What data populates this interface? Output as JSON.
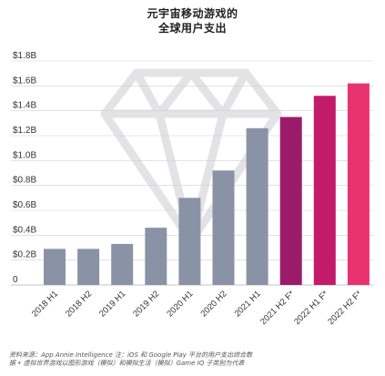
{
  "title_lines": [
    "元宇宙移动游戏的",
    "全球用户支出"
  ],
  "footnote_lines": [
    "资料来源：App Annie Intelligence 注：iOS 和 Google Play 平台的用户支出综合数",
    "据 • 虚拟世界游戏以图形游戏（模拟）和模拟生活（模拟）Game IQ 子类别为代表"
  ],
  "colors": {
    "historical": "#8a93a6",
    "forecast": [
      "#7d1a5b",
      "#9b1b6b",
      "#c21b6a",
      "#e8336f"
    ],
    "grid": "#d0d0d0",
    "axis": "#c4c4c4",
    "watermark": "#e3e3e6"
  },
  "chart_data": {
    "type": "bar",
    "title": "元宇宙移动游戏的 全球用户支出",
    "xlabel": "",
    "ylabel": "",
    "ylim": [
      0,
      1.8
    ],
    "yticks": [
      0,
      0.2,
      0.4,
      0.6,
      0.8,
      1.0,
      1.2,
      1.4,
      1.6,
      1.8
    ],
    "ytick_labels": [
      "0",
      "$0.2B",
      "$0.4B",
      "$0.6B",
      "$0.8B",
      "$1.0B",
      "$1.2B",
      "$1.4B",
      "$1.6B",
      "$1.8B"
    ],
    "grid": "horizontal",
    "categories": [
      "2018 H1",
      "2018 H2",
      "2019 H1",
      "2019 H2",
      "2020 H1",
      "2020 H2",
      "2021 H1",
      "2021 H2 F*",
      "2022 H1 F*",
      "2022 H2 F*"
    ],
    "values": [
      0.29,
      0.29,
      0.33,
      0.46,
      0.7,
      0.92,
      1.26,
      1.35,
      1.52,
      1.62
    ],
    "forecast_flags": [
      false,
      false,
      false,
      false,
      false,
      false,
      false,
      true,
      true,
      true
    ]
  }
}
